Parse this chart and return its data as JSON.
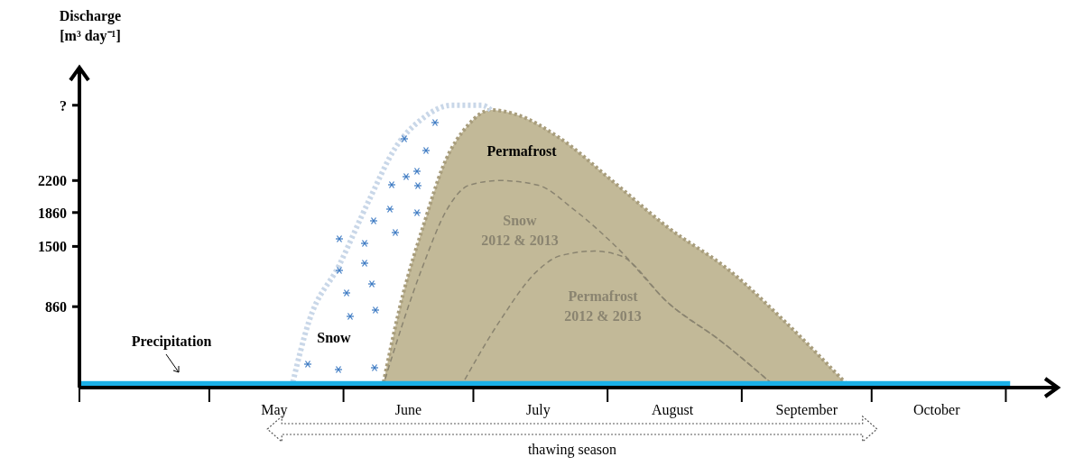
{
  "chart_data": {
    "type": "area",
    "ylabel": "Discharge\n[m³ day⁻¹]",
    "marker": "none",
    "grid": false,
    "xlim": [
      "--04-01",
      "--11-13"
    ],
    "ylim": [
      0,
      3400
    ],
    "xticks": [
      {
        "value": "--04-01",
        "label": null
      },
      {
        "value": "--05-01",
        "label": null
      },
      {
        "value": "--05-16",
        "label": "May"
      },
      {
        "value": "--06-01",
        "label": null
      },
      {
        "value": "--06-16",
        "label": "June"
      },
      {
        "value": "--07-01",
        "label": null
      },
      {
        "value": "--07-16",
        "label": "July"
      },
      {
        "value": "--08-01",
        "label": null
      },
      {
        "value": "--08-16",
        "label": "August"
      },
      {
        "value": "--09-01",
        "label": null
      },
      {
        "value": "--09-16",
        "label": "September"
      },
      {
        "value": "--10-01",
        "label": null
      },
      {
        "value": "--10-16",
        "label": "October"
      },
      {
        "value": "--11-01",
        "label": null
      }
    ],
    "yticks": [
      860,
      1500,
      1860,
      2200,
      {
        "value": 3000,
        "label": "?"
      }
    ],
    "series": [
      {
        "name": "Permafrost",
        "line_style": "dotted",
        "color": "#c2b998",
        "x": [
          "--06-10",
          "--06-14",
          "--06-20",
          "--06-24",
          "--06-30",
          "--07-05",
          "--07-11",
          "--07-21",
          "--08-02",
          "--08-15",
          "--08-29",
          "--09-11",
          "--09-26"
        ],
        "values": [
          0,
          850,
          1800,
          2350,
          2800,
          2950,
          2900,
          2650,
          2200,
          1700,
          1250,
          700,
          0
        ]
      },
      {
        "name": "Snow",
        "type": "line",
        "line_style": "dotted",
        "color": "#c9d7e8",
        "x": [
          "--05-20",
          "--05-24",
          "--05-31",
          "--06-07",
          "--06-13",
          "--06-19",
          "--06-26",
          "--07-03",
          "--07-05"
        ],
        "values": [
          0,
          700,
          1300,
          2000,
          2550,
          2850,
          3000,
          3000,
          2950
        ]
      },
      {
        "name": "Snow\n2012 & 2013",
        "type": "line",
        "line_style": "dashed",
        "color": "#8a8470",
        "x": [
          "--06-10",
          "--06-19",
          "--06-25",
          "--06-30",
          "--07-07",
          "--07-16",
          "--07-24",
          "--08-04",
          "--08-15",
          "--08-27",
          "--09-09"
        ],
        "values": [
          0,
          1250,
          1900,
          2150,
          2200,
          2150,
          1900,
          1450,
          900,
          500,
          0
        ]
      },
      {
        "name": "Permafrost\n2012 & 2013",
        "type": "line",
        "line_style": "dashed",
        "color": "#8a8470",
        "x": [
          "--06-28",
          "--07-07",
          "--07-16",
          "--07-21",
          "--07-29",
          "--08-04",
          "--08-15",
          "--08-27",
          "--09-09"
        ],
        "values": [
          0,
          700,
          1250,
          1400,
          1450,
          1400,
          900,
          500,
          0
        ]
      },
      {
        "name": "Precipitation",
        "type": "line",
        "line_style": "solid",
        "color": "#1ab0e8",
        "x": [
          "--04-01",
          "--11-02"
        ],
        "values": [
          40,
          40
        ]
      }
    ],
    "annotations": [
      "thawing season"
    ]
  }
}
